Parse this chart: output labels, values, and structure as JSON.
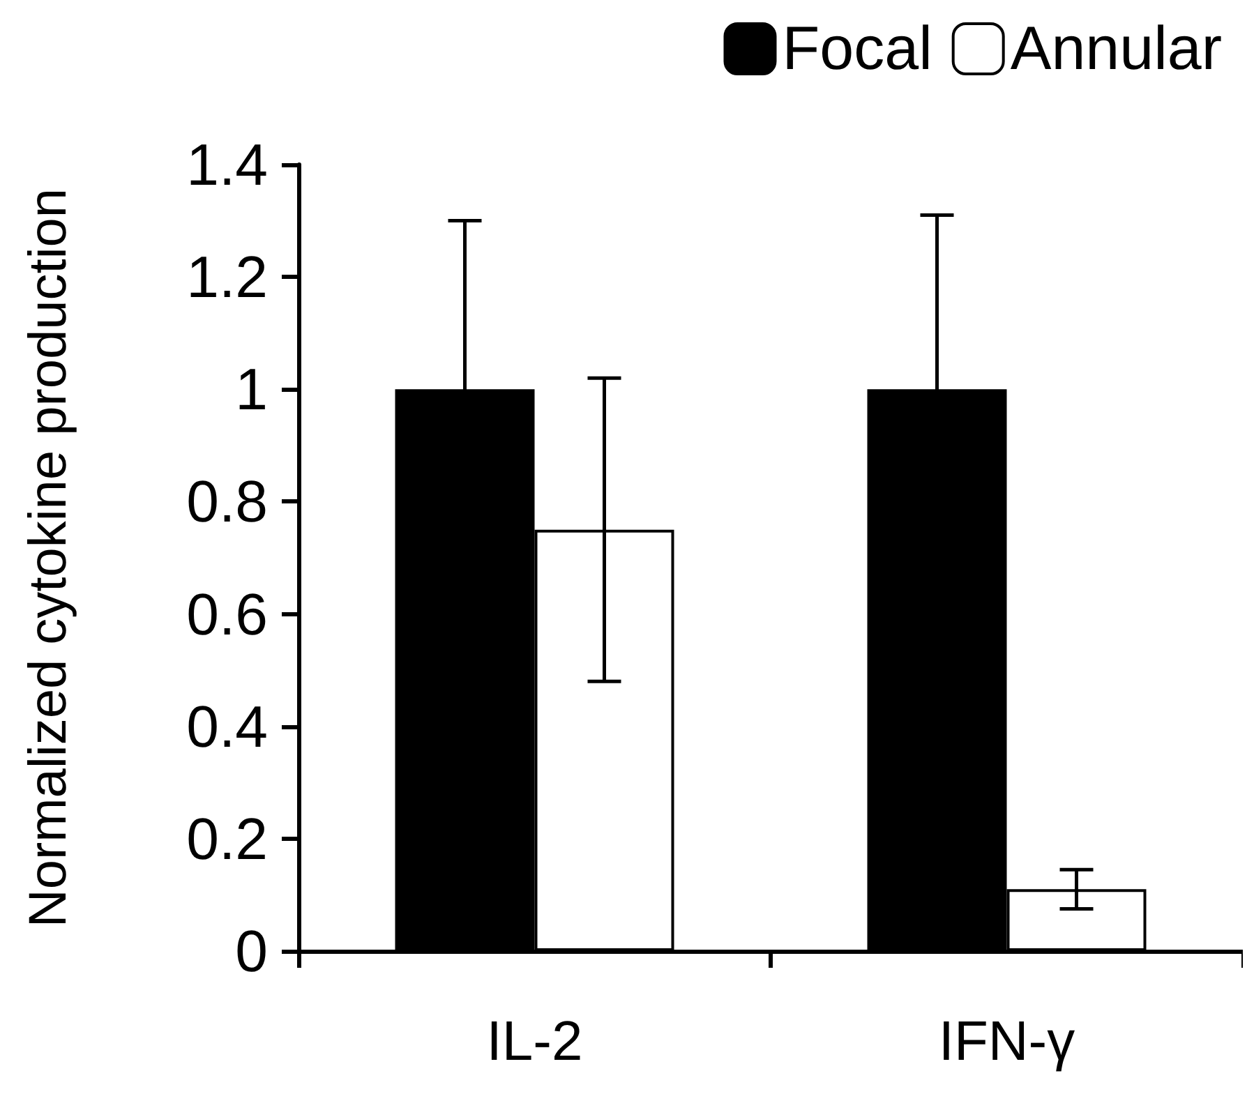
{
  "chart_data": {
    "type": "bar",
    "ylabel": "Normalized cytokine production",
    "categories": [
      "IL-2",
      "IFN-γ"
    ],
    "series": [
      {
        "name": "Focal",
        "color": "#000000",
        "values": [
          1.0,
          1.0
        ],
        "errors": [
          0.3,
          0.31
        ]
      },
      {
        "name": "Annular",
        "color": "#ffffff",
        "values": [
          0.75,
          0.11
        ],
        "errors": [
          0.27,
          0.035
        ]
      }
    ],
    "ylim": [
      0,
      1.4
    ],
    "yticks": [
      0,
      0.2,
      0.4,
      0.6,
      0.8,
      1,
      1.2,
      1.4
    ],
    "grid": false,
    "legend": "top right"
  }
}
